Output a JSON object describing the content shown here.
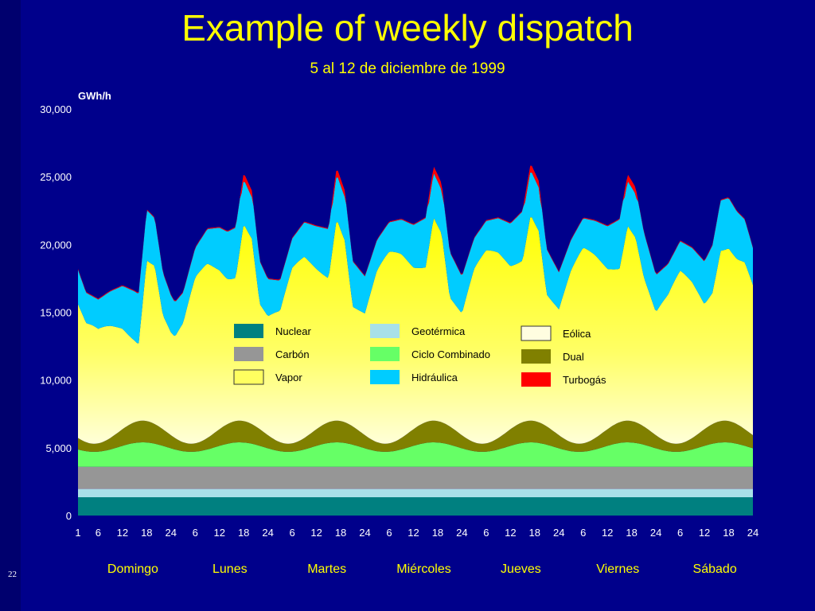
{
  "slide": {
    "title": "Example of weekly dispatch",
    "subtitle": "5 al 12 de diciembre de 1999",
    "number": "22"
  },
  "chart_data": {
    "type": "area",
    "stacked": true,
    "title": "Example of weekly dispatch",
    "subtitle": "5 al 12 de diciembre de 1999",
    "ylabel": "GWh/h",
    "xlabel": "",
    "ylim": [
      0,
      30000
    ],
    "yticks": [
      0,
      5000,
      10000,
      15000,
      20000,
      25000,
      30000
    ],
    "ytick_labels": [
      "0",
      "5,000",
      "10,000",
      "15,000",
      "20,000",
      "25,000",
      "30,000"
    ],
    "x_hours": [
      1,
      168
    ],
    "xtick_hours": [
      1,
      6,
      12,
      18,
      24,
      30,
      36,
      42,
      48,
      54,
      60,
      66,
      72,
      78,
      84,
      90,
      96,
      102,
      108,
      114,
      120,
      126,
      132,
      138,
      144,
      150,
      156,
      162,
      168
    ],
    "xtick_labels": [
      "1",
      "6",
      "12",
      "18",
      "24",
      "6",
      "12",
      "18",
      "24",
      "6",
      "12",
      "18",
      "24",
      "6",
      "12",
      "18",
      "24",
      "6",
      "12",
      "18",
      "24",
      "6",
      "12",
      "18",
      "24",
      "6",
      "12",
      "18",
      "24"
    ],
    "days": [
      "Domingo",
      "Lunes",
      "Martes",
      "Miércoles",
      "Jueves",
      "Viernes",
      "Sábado"
    ],
    "legend_placement": "center",
    "background": "#00008b",
    "series": [
      {
        "name": "Nuclear",
        "color": "#008080"
      },
      {
        "name": "Geotérmica",
        "color": "#a8e0e8"
      },
      {
        "name": "Eólica",
        "color": "#fffde0"
      },
      {
        "name": "Carbón",
        "color": "#969696"
      },
      {
        "name": "Ciclo Combinado",
        "color": "#66ff66"
      },
      {
        "name": "Dual",
        "color": "#808000"
      },
      {
        "name": "Vapor",
        "color": "#ffff60"
      },
      {
        "name": "Hidráulica",
        "color": "#00ccff"
      },
      {
        "name": "Turbogás",
        "color": "#ff0000"
      }
    ],
    "totals_top_cumulative": {
      "hours": [
        1,
        3,
        6,
        9,
        12,
        15,
        16,
        18,
        20,
        22,
        24,
        25,
        27,
        30,
        33,
        36,
        38,
        40,
        42,
        44,
        46,
        48,
        51,
        54,
        57,
        60,
        63,
        65,
        67,
        69,
        72,
        75,
        78,
        81,
        84,
        87,
        89,
        91,
        93,
        96,
        99,
        102,
        105,
        108,
        111,
        113,
        115,
        117,
        120,
        123,
        126,
        129,
        132,
        135,
        137,
        139,
        141,
        144,
        147,
        150,
        153,
        156,
        158,
        160,
        162,
        164,
        166,
        168
      ],
      "values": [
        18200,
        16500,
        16000,
        16600,
        17000,
        16600,
        16400,
        22600,
        22000,
        18000,
        16300,
        15800,
        16500,
        19800,
        21200,
        21300,
        21000,
        21300,
        25300,
        24000,
        18800,
        17500,
        17400,
        20500,
        21700,
        21400,
        21200,
        25700,
        24000,
        18800,
        17700,
        20400,
        21700,
        21900,
        21500,
        22000,
        25800,
        24500,
        19500,
        17700,
        20500,
        21800,
        22000,
        21600,
        22500,
        26000,
        24700,
        19700,
        18000,
        20400,
        22000,
        21800,
        21400,
        21900,
        25200,
        24200,
        21000,
        17800,
        18600,
        20300,
        19800,
        18800,
        20000,
        23300,
        23500,
        22500,
        21900,
        19800
      ]
    }
  }
}
